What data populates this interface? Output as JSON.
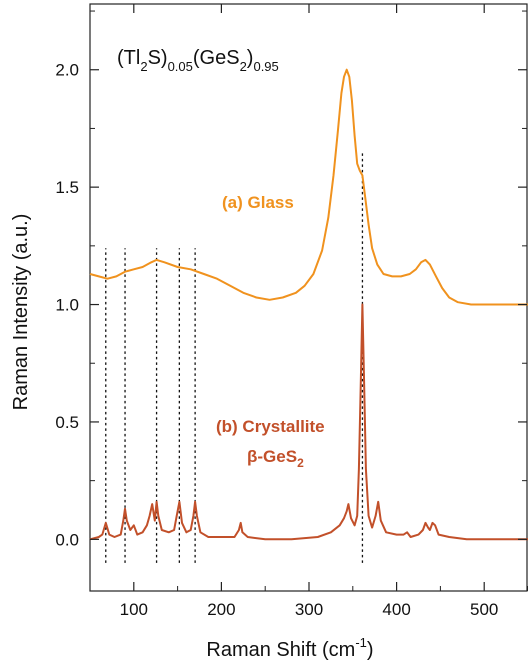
{
  "chart_data": {
    "type": "line",
    "title": "",
    "formula": {
      "parts": [
        "(Tl",
        "2",
        "S)",
        "0.05",
        "(GeS",
        "2",
        ")",
        "0.95"
      ]
    },
    "xlabel": "Raman Shift (cm",
    "xlabel_sup": "-1",
    "xlabel_close": ")",
    "ylabel": "Raman Intensity (a.u.)",
    "xlim": [
      50,
      550
    ],
    "ylim": [
      -0.22,
      2.28
    ],
    "xticks": [
      100,
      200,
      300,
      400,
      500
    ],
    "yticks": [
      0.0,
      0.5,
      1.0,
      1.5,
      2.0
    ],
    "xtick_labels": [
      "100",
      "200",
      "300",
      "400",
      "500"
    ],
    "ytick_labels": [
      "0.0",
      "0.5",
      "1.0",
      "1.5",
      "2.0"
    ],
    "grid": false,
    "vlines_dotted": [
      {
        "x": 68,
        "y0": -0.1,
        "y1": 1.24
      },
      {
        "x": 90,
        "y0": -0.1,
        "y1": 1.24
      },
      {
        "x": 126,
        "y0": -0.1,
        "y1": 1.24
      },
      {
        "x": 152,
        "y0": -0.1,
        "y1": 1.24
      },
      {
        "x": 170,
        "y0": -0.1,
        "y1": 1.24
      },
      {
        "x": 361,
        "y0": -0.1,
        "y1": 1.65
      }
    ],
    "series": [
      {
        "name": "(a) Glass",
        "color": "#F0921E",
        "x": [
          50,
          60,
          70,
          80,
          90,
          100,
          110,
          120,
          126,
          135,
          150,
          165,
          180,
          195,
          210,
          225,
          240,
          255,
          270,
          285,
          295,
          305,
          315,
          322,
          328,
          333,
          337,
          340,
          343,
          346,
          349,
          352,
          355,
          358,
          361,
          364,
          368,
          372,
          378,
          385,
          395,
          405,
          415,
          422,
          428,
          433,
          438,
          445,
          452,
          460,
          470,
          485,
          500,
          520,
          550
        ],
        "y": [
          1.13,
          1.12,
          1.11,
          1.12,
          1.14,
          1.15,
          1.16,
          1.18,
          1.19,
          1.18,
          1.16,
          1.15,
          1.13,
          1.11,
          1.08,
          1.05,
          1.03,
          1.02,
          1.03,
          1.05,
          1.08,
          1.13,
          1.23,
          1.37,
          1.55,
          1.74,
          1.9,
          1.97,
          2.0,
          1.97,
          1.87,
          1.72,
          1.6,
          1.57,
          1.55,
          1.46,
          1.34,
          1.24,
          1.17,
          1.13,
          1.12,
          1.12,
          1.13,
          1.15,
          1.18,
          1.19,
          1.17,
          1.12,
          1.07,
          1.03,
          1.01,
          1.0,
          1.0,
          1.0,
          1.0
        ]
      },
      {
        "name": "(b) Crystallite",
        "name_line2": "β-GeS",
        "name_line2_sub": "2",
        "color": "#C2502A",
        "x": [
          50,
          60,
          64,
          68,
          72,
          78,
          85,
          88,
          90,
          92,
          96,
          100,
          104,
          110,
          115,
          118,
          121,
          124,
          126,
          128,
          132,
          140,
          146,
          149,
          152,
          155,
          160,
          165,
          168,
          170,
          172,
          176,
          185,
          200,
          215,
          220,
          222,
          224,
          230,
          250,
          280,
          310,
          325,
          335,
          340,
          343,
          345,
          348,
          352,
          355,
          357,
          359,
          361,
          363,
          365,
          368,
          372,
          376,
          379,
          382,
          388,
          400,
          408,
          412,
          416,
          425,
          430,
          433,
          436,
          438,
          441,
          444,
          448,
          460,
          480,
          520,
          550
        ],
        "y": [
          0.0,
          0.01,
          0.02,
          0.07,
          0.02,
          0.01,
          0.02,
          0.08,
          0.13,
          0.08,
          0.04,
          0.06,
          0.02,
          0.03,
          0.06,
          0.1,
          0.15,
          0.08,
          0.16,
          0.1,
          0.04,
          0.03,
          0.04,
          0.1,
          0.16,
          0.07,
          0.03,
          0.04,
          0.1,
          0.16,
          0.1,
          0.03,
          0.01,
          0.01,
          0.01,
          0.04,
          0.07,
          0.03,
          0.01,
          0.0,
          0.0,
          0.01,
          0.03,
          0.06,
          0.09,
          0.12,
          0.15,
          0.09,
          0.06,
          0.1,
          0.3,
          0.65,
          1.0,
          0.65,
          0.3,
          0.1,
          0.05,
          0.1,
          0.16,
          0.08,
          0.03,
          0.02,
          0.02,
          0.03,
          0.01,
          0.02,
          0.04,
          0.07,
          0.05,
          0.04,
          0.07,
          0.06,
          0.02,
          0.01,
          0.0,
          0.0,
          0.0
        ]
      }
    ]
  }
}
